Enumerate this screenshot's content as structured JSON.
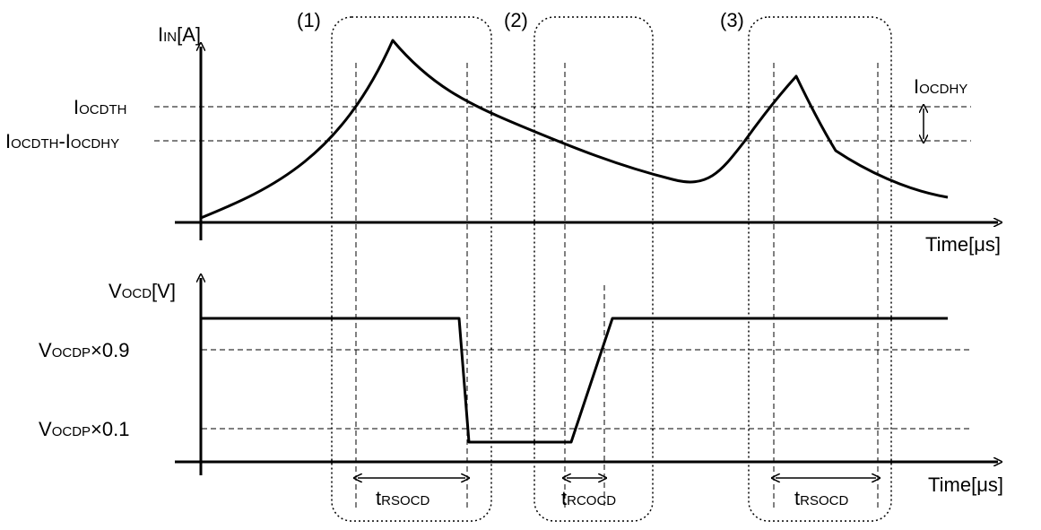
{
  "phases": [
    "(1)",
    "(2)",
    "(3)"
  ],
  "top_chart": {
    "y_axis": {
      "main": "I",
      "sub": "IN",
      "unit": "[A]"
    },
    "x_axis": {
      "main": "Time[",
      "mu": "μ",
      "suffix": "s]"
    },
    "level_ocdth": {
      "main": "I",
      "sub": "OCDTH"
    },
    "level_ocdth_minus_hy": {
      "main1": "I",
      "sub1": "OCDTH",
      "dash": "-",
      "main2": "I",
      "sub2": "OCDHY"
    },
    "hysteresis": {
      "main": "I",
      "sub": "OCDHY"
    }
  },
  "bottom_chart": {
    "y_axis": {
      "main": "V",
      "sub": "OCD",
      "unit": "[V]"
    },
    "x_axis": {
      "main": "Time[",
      "mu": "μ",
      "suffix": "s]"
    },
    "level_90": {
      "main": "V",
      "sub": "OCDP",
      "factor": "×0.9"
    },
    "level_10": {
      "main": "V",
      "sub": "OCDP",
      "factor": "×0.1"
    }
  },
  "timings": {
    "t1": {
      "main": "t",
      "sub": "RSOCD"
    },
    "t2": {
      "main": "t",
      "sub": "RCOCD"
    },
    "t3": {
      "main": "t",
      "sub": "RSOCD"
    }
  }
}
